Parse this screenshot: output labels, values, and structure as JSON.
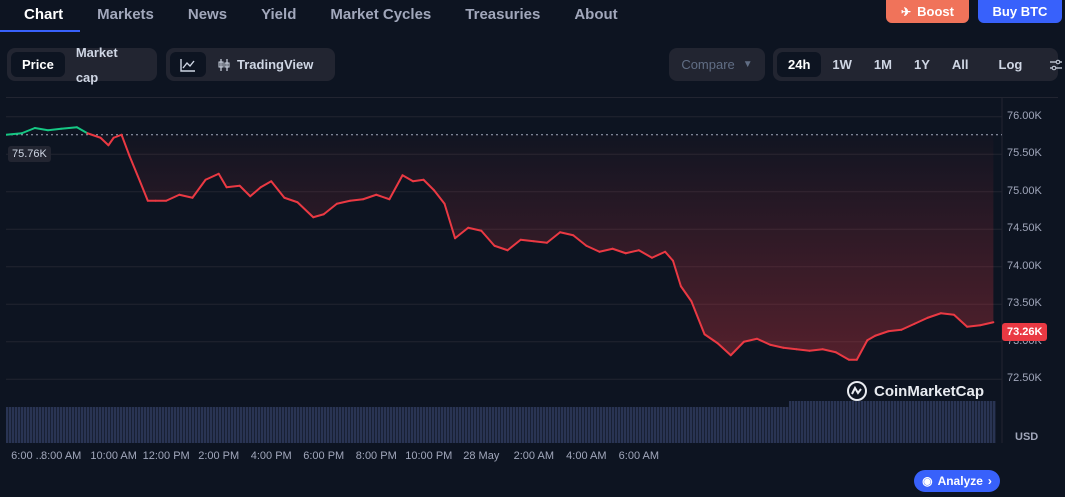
{
  "tabs": [
    {
      "label": "Chart",
      "active": true
    },
    {
      "label": "Markets"
    },
    {
      "label": "News"
    },
    {
      "label": "Yield"
    },
    {
      "label": "Market Cycles"
    },
    {
      "label": "Treasuries"
    },
    {
      "label": "About"
    }
  ],
  "actions": {
    "boost": "Boost",
    "buy": "Buy BTC"
  },
  "toggle_price_cap": [
    {
      "label": "Price",
      "active": true
    },
    {
      "label": "Market cap"
    }
  ],
  "chart_type": {
    "tradingview": "TradingView"
  },
  "compare": {
    "label": "Compare"
  },
  "ranges": [
    {
      "label": "24h",
      "active": true
    },
    {
      "label": "1W"
    },
    {
      "label": "1M"
    },
    {
      "label": "1Y"
    },
    {
      "label": "All"
    },
    {
      "label": "Log"
    }
  ],
  "watermark": "CoinMarketCap",
  "analyze": "Analyze",
  "colors": {
    "up": "#16c784",
    "down": "#ea3943",
    "accent": "#3861fb",
    "boost": "#f0735a"
  },
  "chart_data": {
    "type": "line",
    "currency": "USD",
    "open_price_label": "75.76K",
    "current_price_label": "73.26K",
    "ylim": [
      72250,
      76250
    ],
    "y_ticks": [
      {
        "v": 72500,
        "label": "72.50K"
      },
      {
        "v": 73000,
        "label": "73.00K"
      },
      {
        "v": 73500,
        "label": "73.50K"
      },
      {
        "v": 74000,
        "label": "74.00K"
      },
      {
        "v": 74500,
        "label": "74.50K"
      },
      {
        "v": 75000,
        "label": "75.00K"
      },
      {
        "v": 75500,
        "label": "75.50K"
      },
      {
        "v": 76000,
        "label": "76.00K"
      }
    ],
    "x_labels": [
      "6:00 ...",
      "8:00 AM",
      "10:00 AM",
      "12:00 PM",
      "2:00 PM",
      "4:00 PM",
      "6:00 PM",
      "8:00 PM",
      "10:00 PM",
      "28 May",
      "2:00 AM",
      "4:00 AM",
      "6:00 AM"
    ],
    "x_hours": [
      6,
      8,
      10,
      12,
      14,
      16,
      18,
      20,
      22,
      24,
      26,
      28,
      30
    ],
    "open": 75760,
    "series": [
      {
        "values": [
          [
            5.9,
            75760
          ],
          [
            6.5,
            75780
          ],
          [
            7.0,
            75850
          ],
          [
            7.5,
            75820
          ],
          [
            8.0,
            75840
          ],
          [
            8.6,
            75860
          ],
          [
            9.0,
            75780
          ],
          [
            9.5,
            75720
          ],
          [
            9.8,
            75620
          ],
          [
            10.0,
            75720
          ],
          [
            10.3,
            75760
          ],
          [
            10.6,
            75480
          ],
          [
            11.0,
            75140
          ],
          [
            11.3,
            74880
          ],
          [
            11.6,
            74880
          ],
          [
            12.0,
            74880
          ],
          [
            12.5,
            74960
          ],
          [
            13.0,
            74920
          ],
          [
            13.5,
            75160
          ],
          [
            14.0,
            75240
          ],
          [
            14.3,
            75060
          ],
          [
            14.8,
            75080
          ],
          [
            15.2,
            74940
          ],
          [
            15.6,
            75060
          ],
          [
            16.0,
            75140
          ],
          [
            16.5,
            74920
          ],
          [
            17.0,
            74860
          ],
          [
            17.6,
            74660
          ],
          [
            18.0,
            74700
          ],
          [
            18.5,
            74840
          ],
          [
            19.0,
            74880
          ],
          [
            19.5,
            74900
          ],
          [
            20.0,
            74960
          ],
          [
            20.5,
            74900
          ],
          [
            21.0,
            75220
          ],
          [
            21.4,
            75140
          ],
          [
            21.8,
            75160
          ],
          [
            22.2,
            75020
          ],
          [
            22.6,
            74840
          ],
          [
            23.0,
            74380
          ],
          [
            23.5,
            74520
          ],
          [
            24.0,
            74480
          ],
          [
            24.5,
            74280
          ],
          [
            25.0,
            74220
          ],
          [
            25.5,
            74360
          ],
          [
            26.0,
            74340
          ],
          [
            26.5,
            74320
          ],
          [
            27.0,
            74460
          ],
          [
            27.5,
            74420
          ],
          [
            28.0,
            74280
          ],
          [
            28.5,
            74200
          ],
          [
            29.0,
            74240
          ],
          [
            29.5,
            74180
          ],
          [
            30.0,
            74220
          ],
          [
            30.5,
            74120
          ],
          [
            31.0,
            74200
          ],
          [
            31.3,
            74080
          ],
          [
            31.6,
            73740
          ],
          [
            32.0,
            73540
          ],
          [
            32.5,
            73100
          ],
          [
            33.0,
            72980
          ],
          [
            33.5,
            72820
          ],
          [
            34.0,
            73000
          ],
          [
            34.5,
            73040
          ],
          [
            35.0,
            72960
          ],
          [
            35.5,
            72920
          ],
          [
            36.0,
            72900
          ],
          [
            36.5,
            72880
          ],
          [
            37.0,
            72900
          ],
          [
            37.5,
            72860
          ],
          [
            38.0,
            72760
          ],
          [
            38.3,
            72760
          ],
          [
            38.7,
            73020
          ],
          [
            39.0,
            73080
          ],
          [
            39.5,
            73140
          ],
          [
            40.0,
            73160
          ],
          [
            40.5,
            73240
          ],
          [
            41.0,
            73320
          ],
          [
            41.5,
            73380
          ],
          [
            42.0,
            73360
          ],
          [
            42.5,
            73200
          ],
          [
            43.0,
            73220
          ],
          [
            43.5,
            73260
          ]
        ]
      }
    ]
  }
}
